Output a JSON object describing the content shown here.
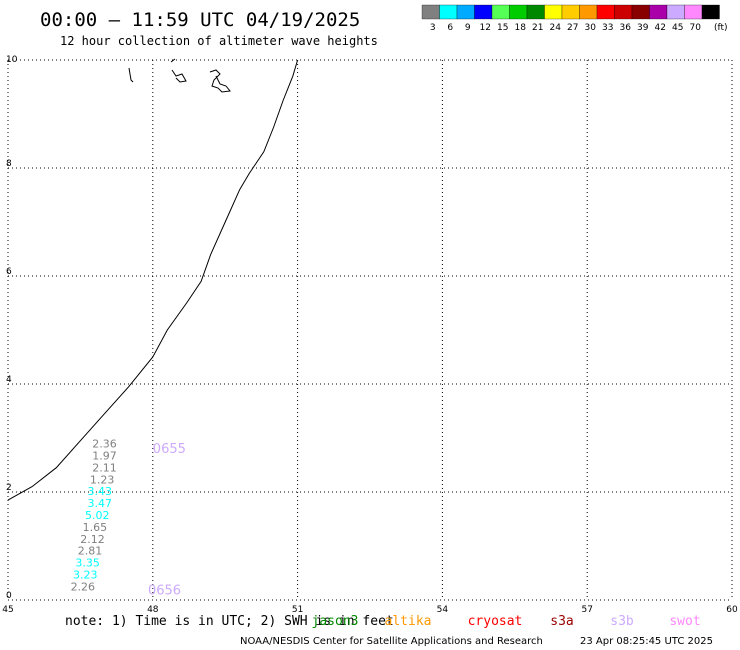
{
  "title": "00:00 – 11:59 UTC 04/19/2025",
  "subtitle": "12 hour collection of altimeter wave heights",
  "legend": {
    "unit": "(ft)",
    "bins": [
      {
        "label": "3",
        "color": "#808080"
      },
      {
        "label": "6",
        "color": "#00ffff"
      },
      {
        "label": "9",
        "color": "#00aaff"
      },
      {
        "label": "12",
        "color": "#0000ff"
      },
      {
        "label": "15",
        "color": "#55ff55"
      },
      {
        "label": "18",
        "color": "#00cc00"
      },
      {
        "label": "21",
        "color": "#008800"
      },
      {
        "label": "24",
        "color": "#ffff00"
      },
      {
        "label": "27",
        "color": "#ffcc00"
      },
      {
        "label": "30",
        "color": "#ff9900"
      },
      {
        "label": "33",
        "color": "#ff0000"
      },
      {
        "label": "36",
        "color": "#cc0000"
      },
      {
        "label": "39",
        "color": "#880000"
      },
      {
        "label": "42",
        "color": "#aa00aa"
      },
      {
        "label": "45",
        "color": "#ccaaff"
      },
      {
        "label": "70",
        "color": "#ff88ff"
      },
      {
        "label": "",
        "color": "#000000"
      }
    ]
  },
  "note": "note:  1) Time is in UTC; 2) SWH is in feet",
  "satellites": [
    {
      "name": "jason3",
      "color": "#008800"
    },
    {
      "name": "altika",
      "color": "#ff9900"
    },
    {
      "name": "cryosat",
      "color": "#ff0000"
    },
    {
      "name": "s3a",
      "color": "#990000"
    },
    {
      "name": "s3b",
      "color": "#ccaaff"
    },
    {
      "name": "swot",
      "color": "#ff88ff"
    }
  ],
  "credit": "NOAA/NESDIS Center for Satellite Applications and Research",
  "generated": "23 Apr 08:25:45 UTC 2025",
  "chart_data": {
    "type": "scatter",
    "xlim": [
      45,
      60
    ],
    "ylim": [
      0,
      10
    ],
    "xticks": [
      "45",
      "48",
      "51",
      "54",
      "57",
      "60"
    ],
    "yticks": [
      "0",
      "2",
      "4",
      "6",
      "8",
      "10"
    ],
    "grid": true,
    "coastline": [
      [
        45.0,
        1.85
      ],
      [
        45.5,
        2.1
      ],
      [
        46.0,
        2.45
      ],
      [
        46.5,
        2.95
      ],
      [
        47.0,
        3.45
      ],
      [
        47.5,
        3.95
      ],
      [
        48.0,
        4.5
      ],
      [
        48.3,
        5.0
      ],
      [
        48.7,
        5.5
      ],
      [
        49.0,
        5.9
      ],
      [
        49.2,
        6.4
      ],
      [
        49.5,
        7.0
      ],
      [
        49.8,
        7.6
      ],
      [
        50.0,
        7.9
      ],
      [
        50.3,
        8.3
      ],
      [
        50.5,
        8.75
      ],
      [
        50.7,
        9.25
      ],
      [
        50.9,
        9.7
      ],
      [
        51.0,
        10.0
      ]
    ],
    "passes": [
      {
        "satellite": "s3b",
        "times": [
          {
            "label": "0655",
            "x": 48.0,
            "y": 2.72
          },
          {
            "label": "0656",
            "x": 47.9,
            "y": 0.1
          }
        ],
        "points": [
          {
            "x": 47.0,
            "y": 2.82,
            "value": "2.36",
            "color": "#808080"
          },
          {
            "x": 47.0,
            "y": 2.6,
            "value": "1.97",
            "color": "#808080"
          },
          {
            "x": 47.0,
            "y": 2.38,
            "value": "2.11",
            "color": "#808080"
          },
          {
            "x": 46.95,
            "y": 2.16,
            "value": "1.23",
            "color": "#808080"
          },
          {
            "x": 46.9,
            "y": 1.94,
            "value": "3.43",
            "color": "#00ffff"
          },
          {
            "x": 46.9,
            "y": 1.72,
            "value": "3.47",
            "color": "#00ffff"
          },
          {
            "x": 46.85,
            "y": 1.5,
            "value": "5.02",
            "color": "#00ffff"
          },
          {
            "x": 46.8,
            "y": 1.28,
            "value": "1.65",
            "color": "#808080"
          },
          {
            "x": 46.75,
            "y": 1.06,
            "value": "2.12",
            "color": "#808080"
          },
          {
            "x": 46.7,
            "y": 0.84,
            "value": "2.81",
            "color": "#808080"
          },
          {
            "x": 46.65,
            "y": 0.62,
            "value": "3.35",
            "color": "#00ffff"
          },
          {
            "x": 46.6,
            "y": 0.4,
            "value": "3.23",
            "color": "#00ffff"
          },
          {
            "x": 46.55,
            "y": 0.18,
            "value": "2.26",
            "color": "#808080"
          }
        ]
      }
    ]
  }
}
